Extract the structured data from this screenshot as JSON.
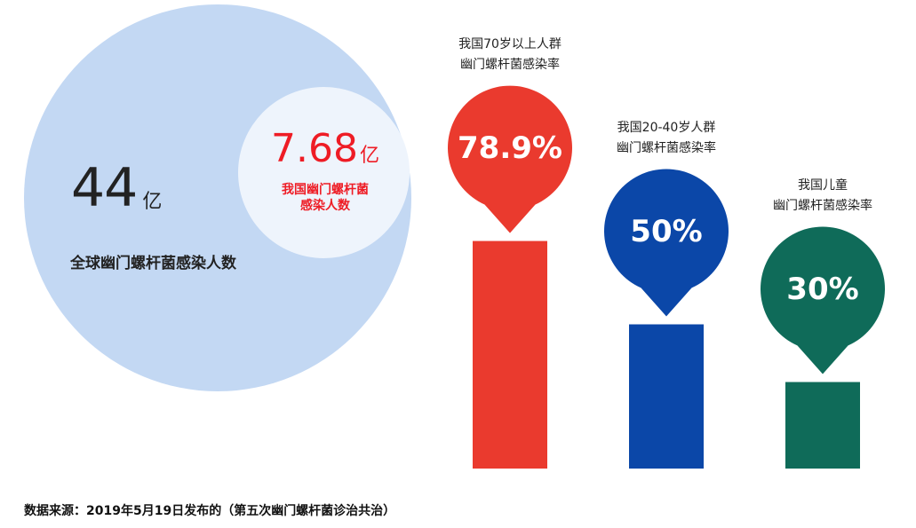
{
  "global": {
    "value": "44",
    "unit": "亿",
    "label": "全球幽门螺杆菌感染人数"
  },
  "china": {
    "value": "7.68",
    "unit": "亿",
    "label_line1": "我国幽门螺杆菌",
    "label_line2": "感染人数"
  },
  "chart_data": {
    "type": "bar",
    "title": "",
    "ylabel": "幽门螺杆菌感染率",
    "ylim": [
      0,
      100
    ],
    "categories": [
      {
        "line1": "我国70岁以上人群",
        "line2": "幽门螺杆菌感染率"
      },
      {
        "line1": "我国20-40岁人群",
        "line2": "幽门螺杆菌感染率"
      },
      {
        "line1": "我国儿童",
        "line2": "幽门螺杆菌感染率"
      }
    ],
    "values": [
      78.9,
      50,
      30
    ],
    "value_labels": [
      "78.9%",
      "50%",
      "30%"
    ],
    "colors": [
      "#ea3a2e",
      "#0b47a8",
      "#0f6b59"
    ]
  },
  "source": "数据来源：2019年5月19日发布的（第五次幽门螺杆菌诊治共治）"
}
